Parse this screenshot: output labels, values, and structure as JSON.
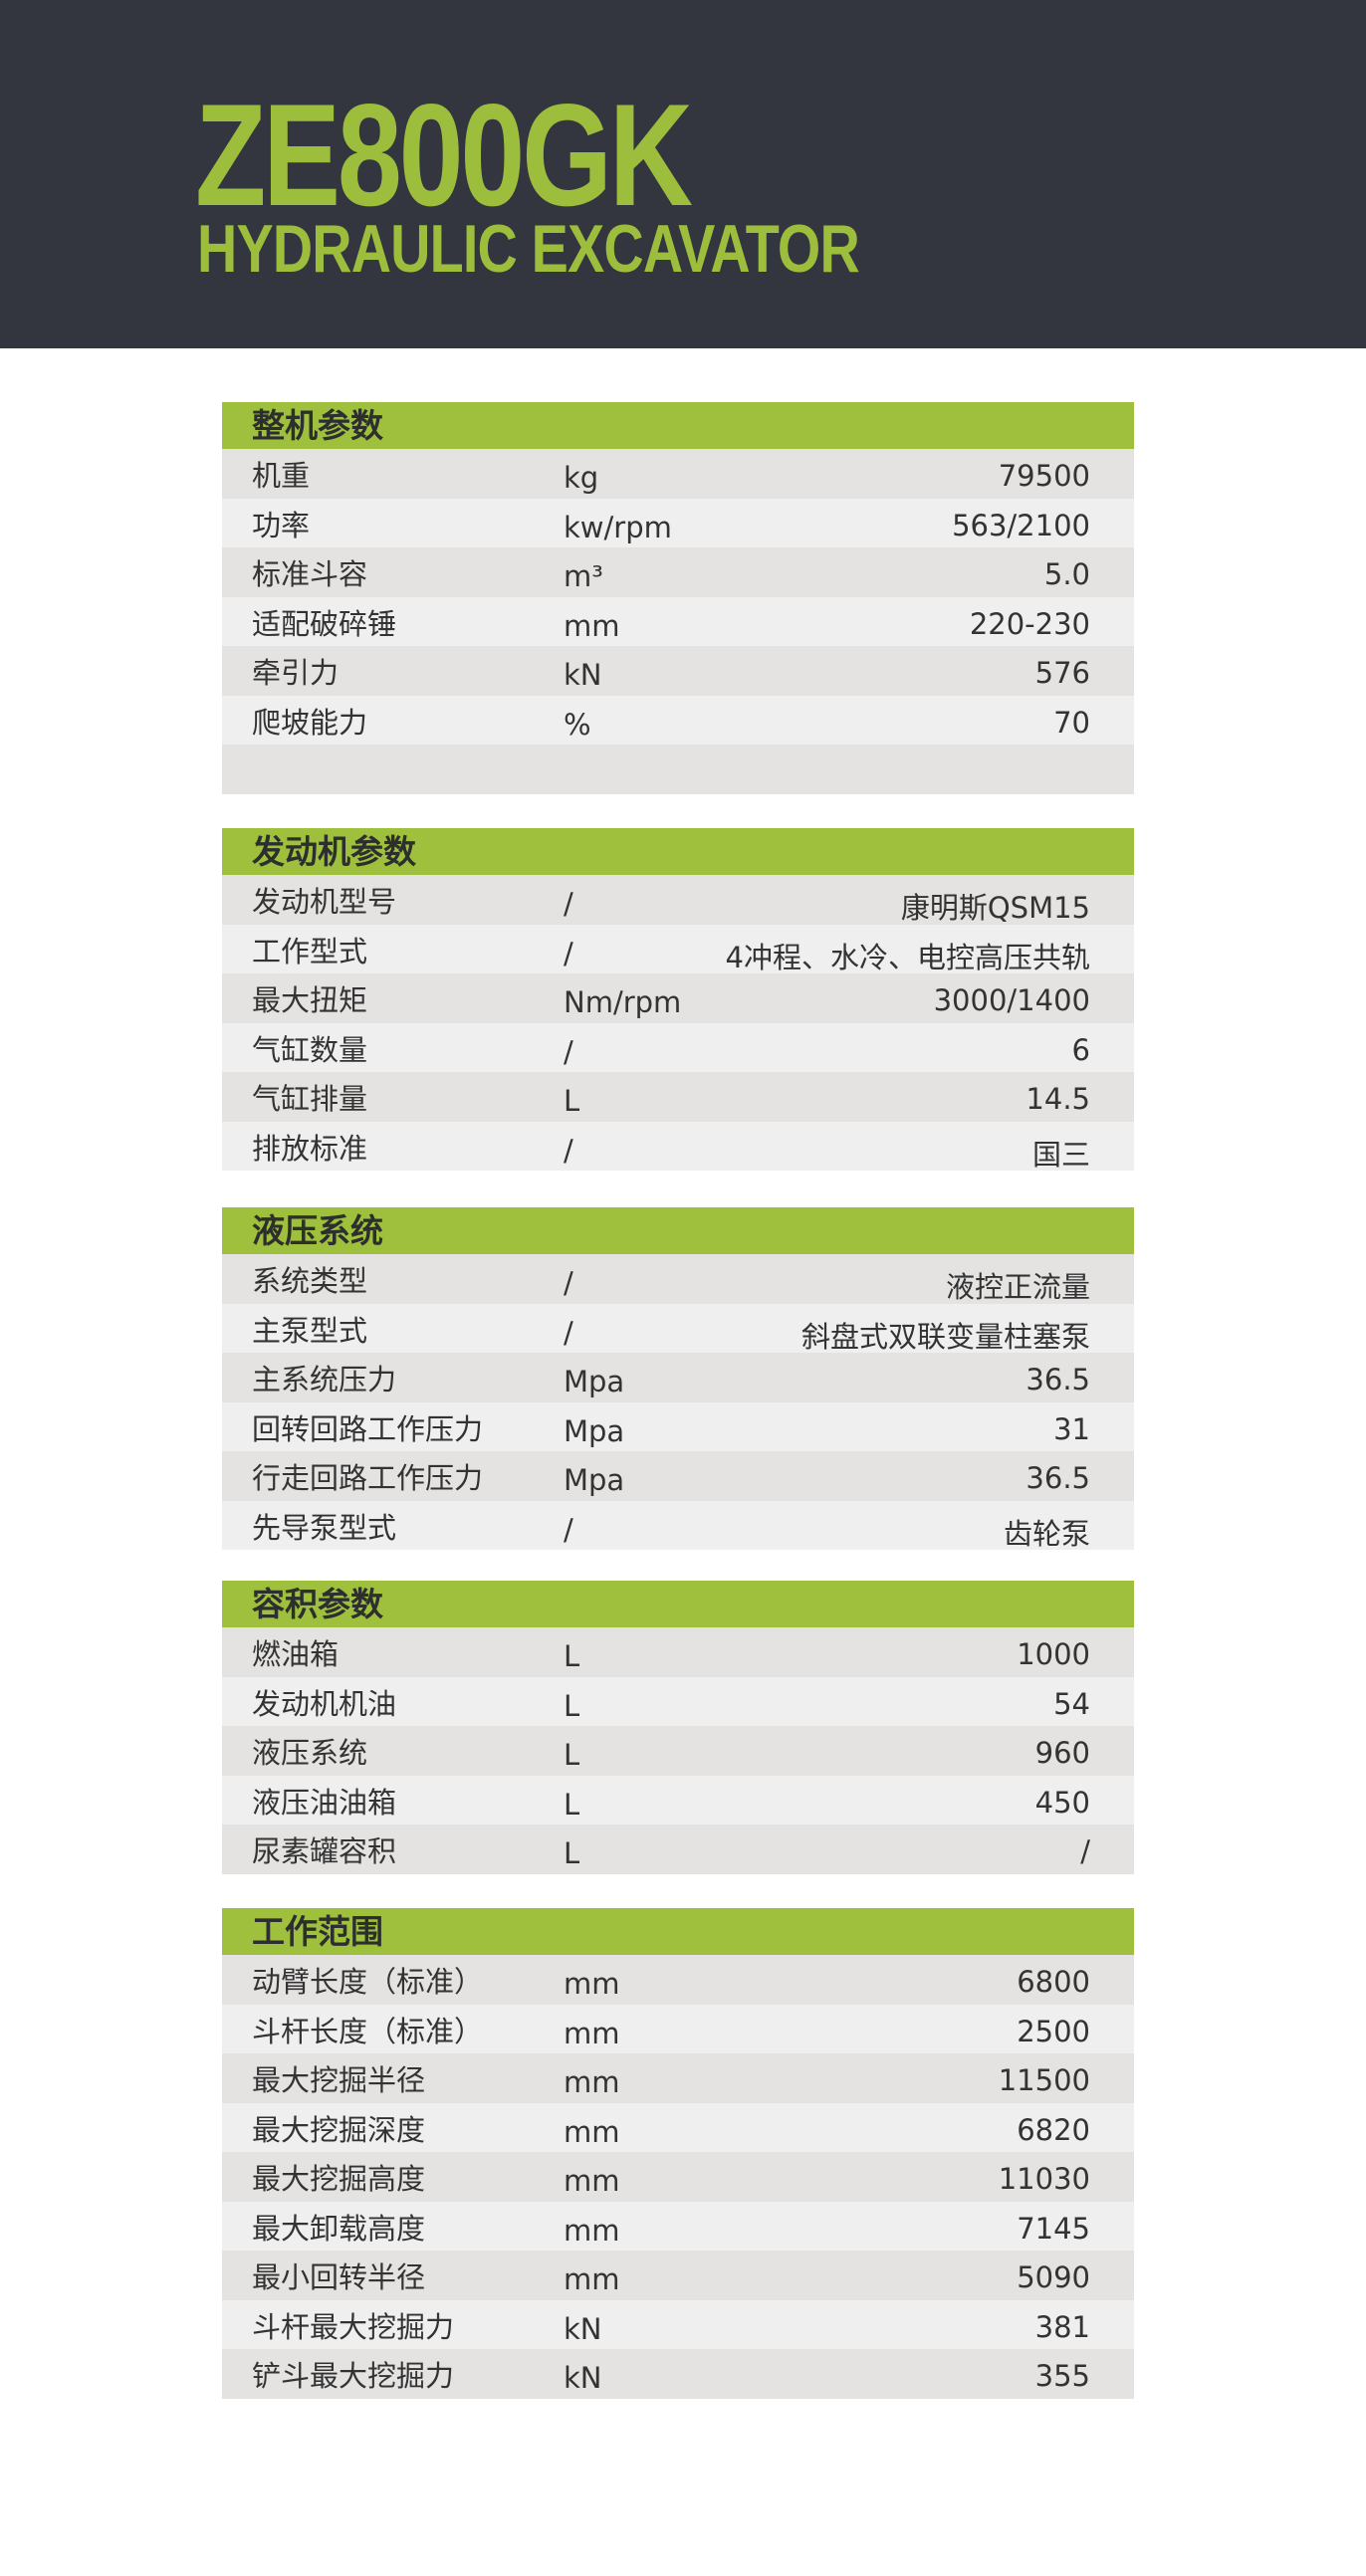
{
  "header": {
    "model": "ZE800GK",
    "subtitle": "HYDRAULIC EXCAVATOR"
  },
  "colors": {
    "header_bg": "#34363f",
    "accent": "#9fc03c",
    "row_light": "#f0efef",
    "row_dark": "#e4e3e2"
  },
  "sections": [
    {
      "title": "整机参数",
      "rows": [
        [
          "机重",
          "kg",
          "79500"
        ],
        [
          "功率",
          "kw/rpm",
          "563/2100"
        ],
        [
          "标准斗容",
          "m³",
          "5.0"
        ],
        [
          "适配破碎锤",
          "mm",
          "220-230"
        ],
        [
          "牵引力",
          "kN",
          "576"
        ],
        [
          "爬坡能力",
          "%",
          "70"
        ],
        [
          "",
          "",
          ""
        ]
      ]
    },
    {
      "title": "发动机参数",
      "rows": [
        [
          "发动机型号",
          "/",
          "康明斯QSM15"
        ],
        [
          "工作型式",
          "/",
          "4冲程、水冷、电控高压共轨"
        ],
        [
          "最大扭矩",
          "Nm/rpm",
          "3000/1400"
        ],
        [
          "气缸数量",
          "/",
          "6"
        ],
        [
          "气缸排量",
          "L",
          "14.5"
        ],
        [
          "排放标准",
          "/",
          "国三"
        ]
      ]
    },
    {
      "title": "液压系统",
      "rows": [
        [
          "系统类型",
          "/",
          "液控正流量"
        ],
        [
          "主泵型式",
          "/",
          "斜盘式双联变量柱塞泵"
        ],
        [
          "主系统压力",
          "Mpa",
          "36.5"
        ],
        [
          "回转回路工作压力",
          "Mpa",
          "31"
        ],
        [
          "行走回路工作压力",
          "Mpa",
          "36.5"
        ],
        [
          "先导泵型式",
          "/",
          "齿轮泵"
        ]
      ]
    },
    {
      "title": "容积参数",
      "rows": [
        [
          "燃油箱",
          "L",
          "1000"
        ],
        [
          "发动机机油",
          "L",
          "54"
        ],
        [
          "液压系统",
          "L",
          "960"
        ],
        [
          "液压油油箱",
          "L",
          "450"
        ],
        [
          "尿素罐容积",
          "L",
          "/"
        ]
      ]
    },
    {
      "title": "工作范围",
      "rows": [
        [
          "动臂长度（标准）",
          "mm",
          "6800"
        ],
        [
          "斗杆长度（标准）",
          "mm",
          "2500"
        ],
        [
          "最大挖掘半径",
          "mm",
          "11500"
        ],
        [
          "最大挖掘深度",
          "mm",
          "6820"
        ],
        [
          "最大挖掘高度",
          "mm",
          "11030"
        ],
        [
          "最大卸载高度",
          "mm",
          "7145"
        ],
        [
          "最小回转半径",
          "mm",
          "5090"
        ],
        [
          "斗杆最大挖掘力",
          "kN",
          "381"
        ],
        [
          "铲斗最大挖掘力",
          "kN",
          "355"
        ]
      ]
    }
  ]
}
